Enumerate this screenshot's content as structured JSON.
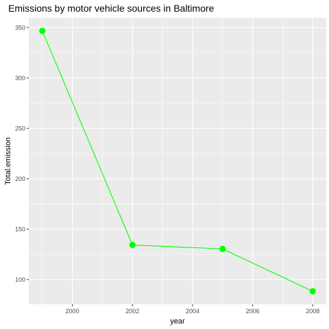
{
  "chart_data": {
    "type": "line",
    "title": "Emissions by motor vehicle sources in Baltimore",
    "xlabel": "year",
    "ylabel": "Total.emission",
    "x": [
      1999,
      2002,
      2005,
      2008
    ],
    "series": [
      {
        "values": [
          346.8,
          134.3,
          130.4,
          88.3
        ]
      }
    ],
    "xlim": [
      1998.55,
      2008.45
    ],
    "ylim": [
      75.4,
      359.7
    ],
    "xticks": [
      2000,
      2002,
      2004,
      2006,
      2008
    ],
    "xtick_labels": [
      "2000",
      "2002",
      "2004",
      "2006",
      "2008"
    ],
    "yticks": [
      100,
      150,
      200,
      250,
      300,
      350
    ],
    "ytick_labels": [
      "100",
      "150",
      "200",
      "250",
      "300",
      "350"
    ],
    "grid": true,
    "legend": "none",
    "colors": {
      "series": "#00ff00",
      "panel_background": "#ebebeb",
      "grid": "#ffffff",
      "tick_text": "#4d4d4d"
    }
  }
}
